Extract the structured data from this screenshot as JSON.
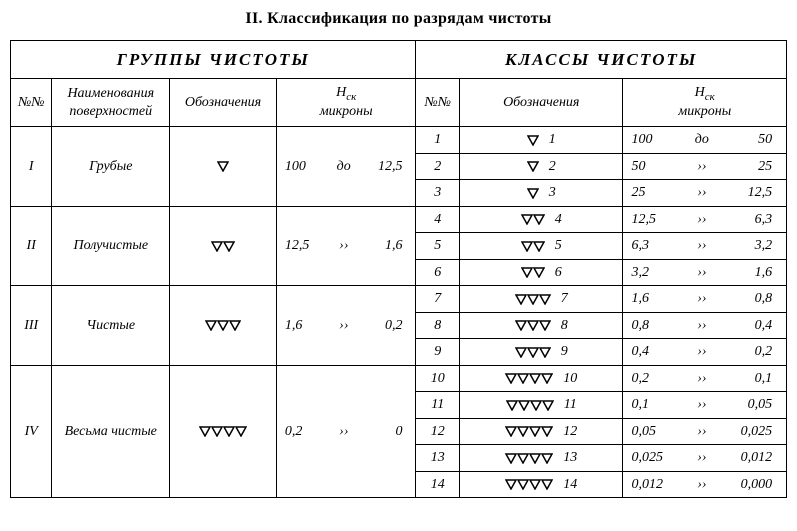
{
  "title": "II. Классификация по разрядам чистоты",
  "header_groups": "ГРУППЫ ЧИСТОТЫ",
  "header_classes": "КЛАССЫ ЧИСТОТЫ",
  "col_nono": "№№",
  "col_name": "Наименования поверхностей",
  "col_sym": "Обозначения",
  "col_hsk_top": "H",
  "col_hsk_sub": "ск",
  "col_hsk_bot": "микроны",
  "sep_do": "до",
  "sep_dd": "››",
  "groups": [
    {
      "roman": "I",
      "name": "Грубые",
      "tri": 1,
      "from": "100",
      "sep": "до",
      "to": "12,5"
    },
    {
      "roman": "II",
      "name": "Получистые",
      "tri": 2,
      "from": "12,5",
      "sep": "››",
      "to": "1,6"
    },
    {
      "roman": "III",
      "name": "Чистые",
      "tri": 3,
      "from": "1,6",
      "sep": "››",
      "to": "0,2"
    },
    {
      "roman": "IV",
      "name": "Весьма чистые",
      "tri": 4,
      "from": "0,2",
      "sep": "››",
      "to": "0"
    }
  ],
  "classes": [
    {
      "n": "1",
      "tri": 1,
      "from": "100",
      "sep": "до",
      "to": "50"
    },
    {
      "n": "2",
      "tri": 1,
      "from": "50",
      "sep": "››",
      "to": "25"
    },
    {
      "n": "3",
      "tri": 1,
      "from": "25",
      "sep": "››",
      "to": "12,5"
    },
    {
      "n": "4",
      "tri": 2,
      "from": "12,5",
      "sep": "››",
      "to": "6,3"
    },
    {
      "n": "5",
      "tri": 2,
      "from": "6,3",
      "sep": "››",
      "to": "3,2"
    },
    {
      "n": "6",
      "tri": 2,
      "from": "3,2",
      "sep": "››",
      "to": "1,6"
    },
    {
      "n": "7",
      "tri": 3,
      "from": "1,6",
      "sep": "››",
      "to": "0,8"
    },
    {
      "n": "8",
      "tri": 3,
      "from": "0,8",
      "sep": "››",
      "to": "0,4"
    },
    {
      "n": "9",
      "tri": 3,
      "from": "0,4",
      "sep": "››",
      "to": "0,2"
    },
    {
      "n": "10",
      "tri": 4,
      "from": "0,2",
      "sep": "››",
      "to": "0,1"
    },
    {
      "n": "11",
      "tri": 4,
      "from": "0,1",
      "sep": "››",
      "to": "0,05"
    },
    {
      "n": "12",
      "tri": 4,
      "from": "0,05",
      "sep": "››",
      "to": "0,025"
    },
    {
      "n": "13",
      "tri": 4,
      "from": "0,025",
      "sep": "››",
      "to": "0,012"
    },
    {
      "n": "14",
      "tri": 4,
      "from": "0,012",
      "sep": "››",
      "to": "0,000"
    }
  ],
  "group_spans": [
    3,
    3,
    3,
    5
  ],
  "columns": {
    "left_nono_w": 38,
    "left_name_w": 108,
    "left_sym_w": 98,
    "left_hsk_w": 128,
    "right_nono_w": 40,
    "right_sym_w": 150,
    "right_hsk_w": 150
  },
  "style": {
    "border_color": "#000000",
    "bg": "#ffffff",
    "text_color": "#000000",
    "font": "Times New Roman",
    "triangle_stroke": "#000000",
    "triangle_stroke_w": 1.5,
    "triangle_w": 12,
    "triangle_h": 11
  }
}
